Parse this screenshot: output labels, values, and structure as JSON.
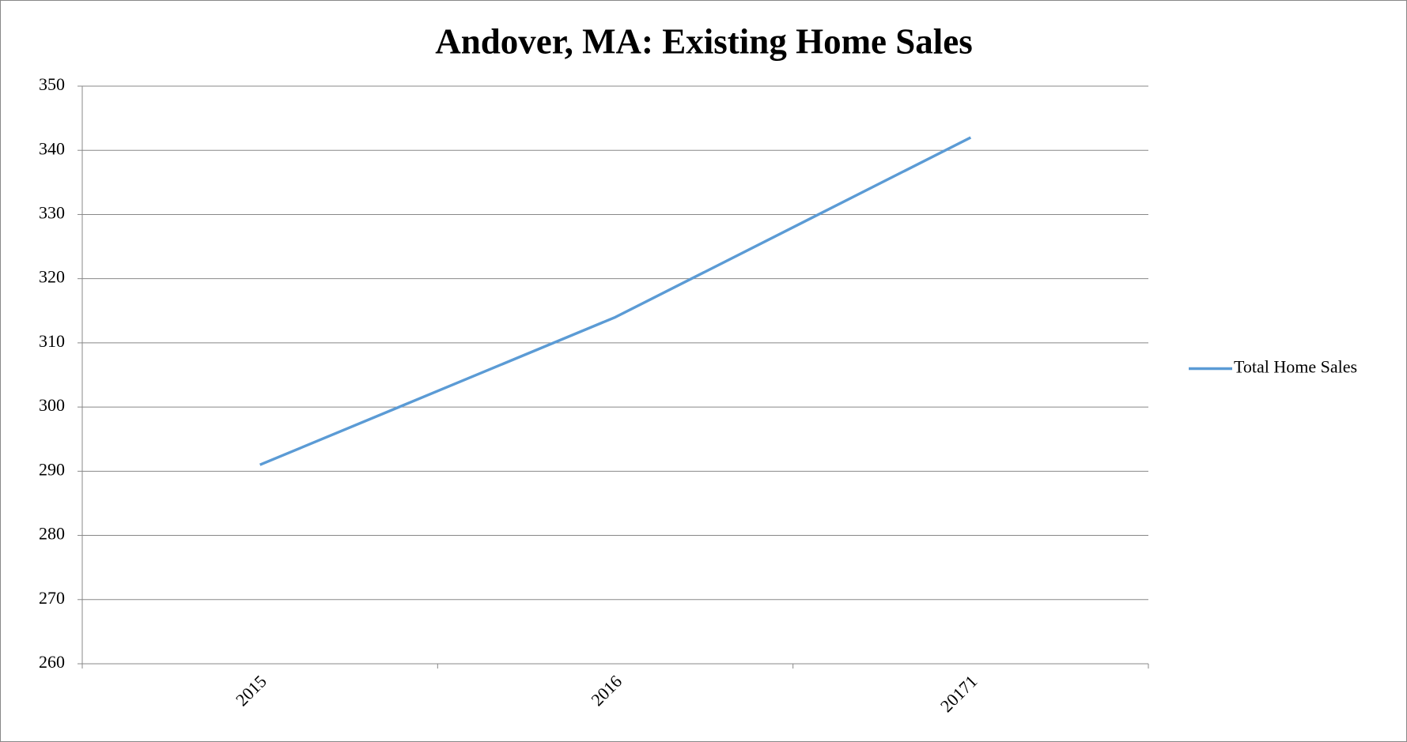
{
  "chart_data": {
    "type": "line",
    "title": "Andover, MA: Existing Home Sales",
    "categories": [
      "2015",
      "2016",
      "20171"
    ],
    "series": [
      {
        "name": "Total Home Sales",
        "color": "#5b9bd5",
        "values": [
          291,
          314,
          342
        ]
      }
    ],
    "ylim": [
      260,
      350
    ],
    "yticks": [
      260,
      270,
      280,
      290,
      300,
      310,
      320,
      330,
      340,
      350
    ],
    "grid": true,
    "legend": "right"
  }
}
